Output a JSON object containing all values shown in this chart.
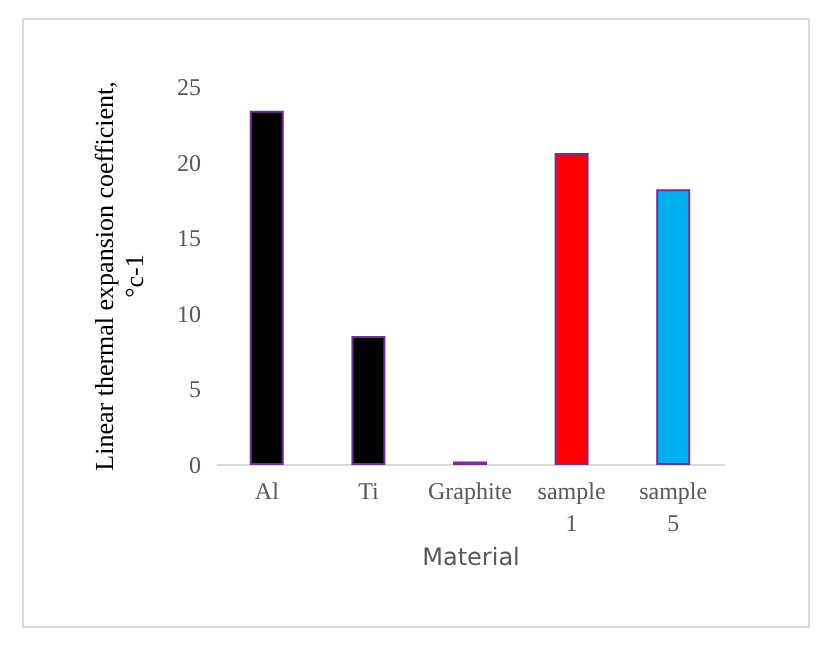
{
  "chart_data": {
    "type": "bar",
    "xlabel": "Material",
    "ylabel": "Linear thermal expansion coefficient, °c-1",
    "categories": [
      "Al",
      "Ti",
      "Graphite",
      "sample 1",
      "sample 5"
    ],
    "values": [
      23.3,
      8.4,
      0.1,
      20.5,
      18.1
    ],
    "colors": [
      "#000000",
      "#000000",
      "#000000",
      "#ff0000",
      "#00b0f0"
    ],
    "ylim": [
      0,
      25
    ],
    "yticks": [
      0,
      5,
      10,
      15,
      20,
      25
    ],
    "grid": false,
    "legend": false
  }
}
